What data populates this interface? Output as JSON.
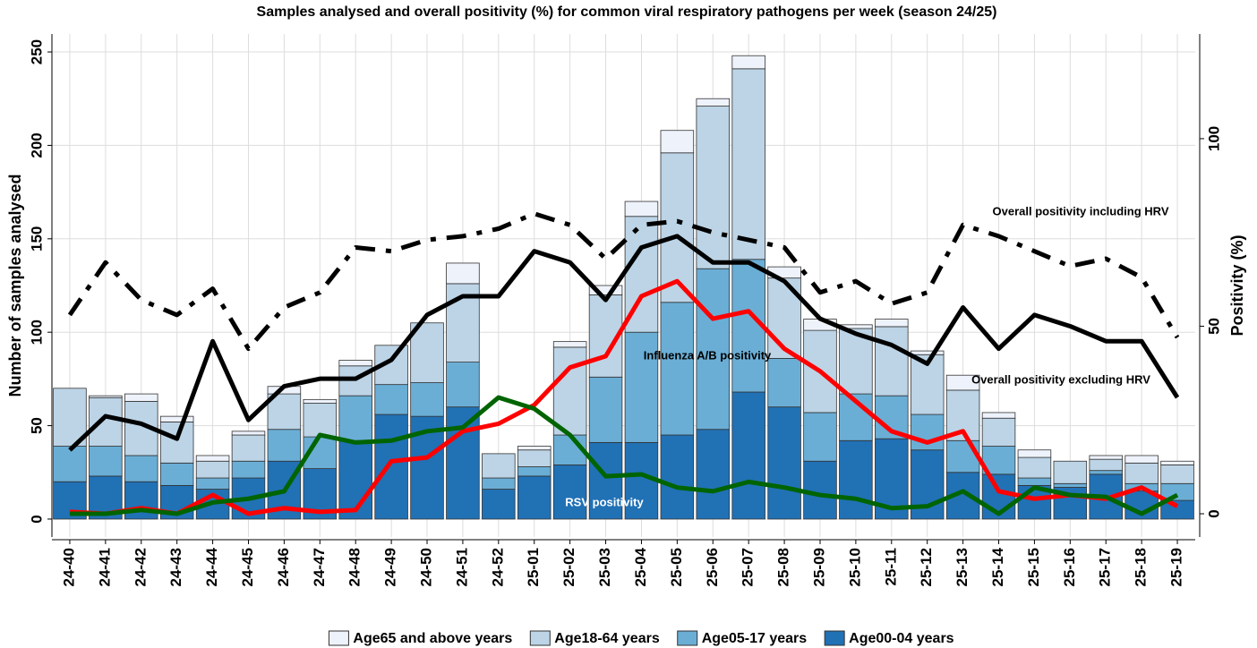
{
  "chart_data": {
    "type": "stacked-bar-line",
    "title": "Samples analysed and overall positivity (%) for common viral respiratory pathogens per week (season 24/25)",
    "y_label": "Number of samples analysed",
    "y2_label": "Positivity (%)",
    "categories": [
      "24-40",
      "24-41",
      "24-42",
      "24-43",
      "24-44",
      "24-45",
      "24-46",
      "24-47",
      "24-48",
      "24-49",
      "24-50",
      "24-51",
      "24-52",
      "25-01",
      "25-02",
      "25-03",
      "25-04",
      "25-05",
      "25-06",
      "25-07",
      "25-08",
      "25-09",
      "25-10",
      "25-11",
      "25-12",
      "25-13",
      "25-14",
      "25-15",
      "25-16",
      "25-17",
      "25-18",
      "25-19"
    ],
    "series": [
      {
        "name": "Age65 and above years",
        "color": "#eef2fb",
        "values": [
          0,
          1,
          4,
          3,
          3,
          2,
          4,
          2,
          3,
          0,
          0,
          11,
          0,
          2,
          3,
          5,
          8,
          12,
          4,
          7,
          6,
          6,
          2,
          4,
          2,
          8,
          3,
          4,
          0,
          2,
          4,
          2
        ]
      },
      {
        "name": "Age18-64 years",
        "color": "#bcd4e6",
        "values": [
          31,
          26,
          29,
          22,
          9,
          14,
          19,
          18,
          16,
          21,
          32,
          42,
          13,
          9,
          47,
          44,
          62,
          80,
          87,
          102,
          43,
          44,
          35,
          37,
          32,
          27,
          15,
          11,
          12,
          6,
          11,
          10
        ]
      },
      {
        "name": "Age05-17 years",
        "color": "#6aaed6",
        "values": [
          19,
          16,
          14,
          12,
          6,
          9,
          17,
          17,
          24,
          16,
          18,
          24,
          6,
          5,
          16,
          35,
          59,
          71,
          86,
          71,
          26,
          26,
          25,
          23,
          19,
          17,
          15,
          4,
          2,
          2,
          4,
          9
        ]
      },
      {
        "name": "Age00-04 years",
        "color": "#2171b5",
        "values": [
          20,
          23,
          20,
          18,
          16,
          22,
          31,
          27,
          42,
          56,
          55,
          60,
          16,
          23,
          29,
          41,
          41,
          45,
          48,
          68,
          60,
          31,
          42,
          43,
          37,
          25,
          24,
          18,
          17,
          24,
          15,
          10
        ]
      }
    ],
    "line_series": [
      {
        "name": "Overall positivity including HRV",
        "color": "#000000",
        "style": "dashdot",
        "axis": "y2",
        "values": [
          53,
          67,
          57,
          53,
          60,
          44,
          55,
          59,
          71,
          70,
          73,
          74,
          76,
          80,
          77,
          68,
          77,
          78,
          75,
          73,
          71,
          59,
          62,
          56,
          59,
          77,
          74,
          70,
          66,
          68,
          63,
          47
        ]
      },
      {
        "name": "Overall positivity excluding HRV",
        "color": "#000000",
        "style": "solid",
        "axis": "y2",
        "values": [
          17,
          26,
          24,
          20,
          46,
          25,
          34,
          36,
          36,
          41,
          53,
          58,
          58,
          70,
          67,
          57,
          71,
          74,
          67,
          67,
          62,
          52,
          48,
          45,
          40,
          55,
          44,
          53,
          50,
          46,
          46,
          31
        ]
      },
      {
        "name": "Influenza A/B positivity",
        "color": "#ff0000",
        "style": "solid",
        "axis": "y2",
        "values": [
          0.5,
          0,
          1.5,
          0,
          5,
          0,
          1.5,
          0.5,
          1,
          14,
          15,
          22,
          24,
          29,
          39,
          42,
          58,
          62,
          52,
          54,
          44,
          38,
          30,
          22,
          19,
          22,
          6,
          4,
          5,
          4,
          7,
          2
        ]
      },
      {
        "name": "RSV positivity",
        "color": "#006400",
        "style": "solid",
        "axis": "y2",
        "values": [
          0,
          0,
          1,
          0,
          3,
          4,
          6,
          21,
          19,
          19.5,
          22,
          23,
          31,
          28,
          21,
          10,
          10.5,
          7,
          6,
          8.5,
          7,
          5,
          4,
          1.5,
          2,
          6,
          0,
          7,
          5,
          4.5,
          0,
          5
        ]
      }
    ],
    "ylim": [
      -9.6,
      259.6
    ],
    "yticks": [
      0,
      50,
      100,
      150,
      200,
      250
    ],
    "y2lim": [
      -6.2,
      127.9
    ],
    "y2ticks": [
      0,
      50,
      100
    ],
    "grid": true
  }
}
